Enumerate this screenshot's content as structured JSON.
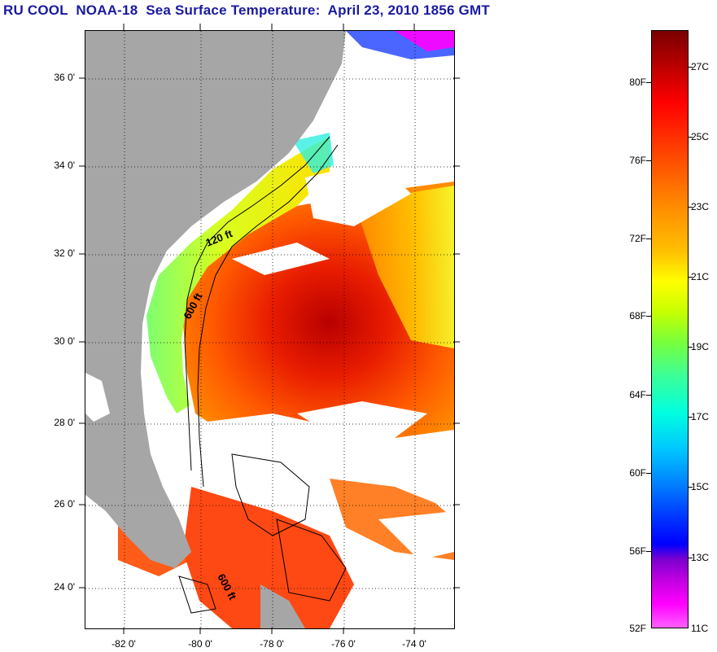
{
  "title": "RU COOL  NOAA-18  Sea Surface Temperature:  April 23, 2010 1856 GMT",
  "map": {
    "latitude_labels": [
      "36 0'",
      "34 0'",
      "32 0'",
      "30 0'",
      "28 0'",
      "26 0'",
      "24 0'"
    ],
    "longitude_labels": [
      "-82 0'",
      "-80 0'",
      "-78 0'",
      "-76 0'",
      "-74 0'"
    ],
    "contour_labels": [
      "120 ft",
      "600 ft",
      "600 ft"
    ],
    "colors": {
      "land": "#a6a6a6",
      "cloud": "#ffffff",
      "warm": "#ff5a00",
      "cool": "#ffff00"
    }
  },
  "colorbar": {
    "fahrenheit_labels": [
      "80F",
      "76F",
      "72F",
      "68F",
      "64F",
      "60F",
      "56F",
      "52F"
    ],
    "celsius_labels": [
      "27C",
      "25C",
      "23C",
      "21C",
      "19C",
      "17C",
      "15C",
      "13C",
      "11C"
    ]
  }
}
